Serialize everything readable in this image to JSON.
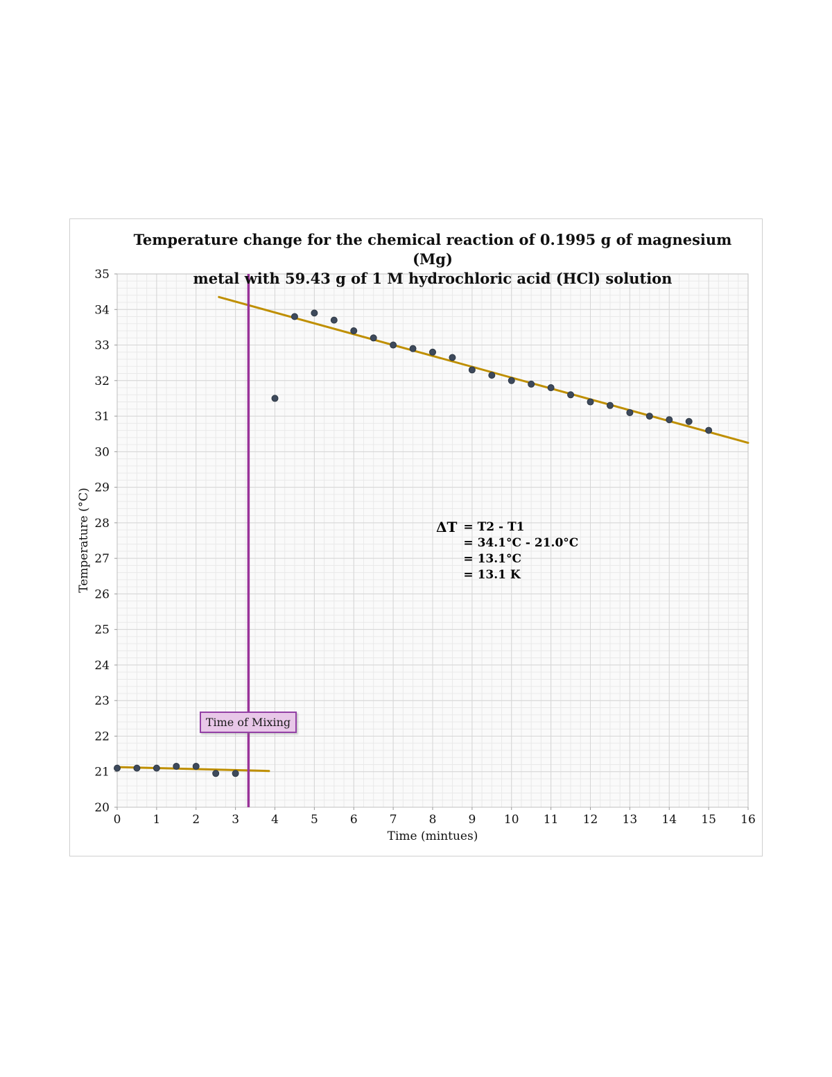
{
  "chart_data": {
    "type": "scatter",
    "title_line1": "Temperature change for the chemical reaction of 0.1995 g of magnesium (Mg)",
    "title_line2": "metal with 59.43 g of 1 M hydrochloric acid (HCl) solution",
    "xlabel": "Time (mintues)",
    "ylabel": "Temperature (°C)",
    "xlim": [
      0,
      16
    ],
    "ylim": [
      20,
      35
    ],
    "x_ticks": [
      0,
      1,
      2,
      3,
      4,
      5,
      6,
      7,
      8,
      9,
      10,
      11,
      12,
      13,
      14,
      15,
      16
    ],
    "y_ticks": [
      20,
      21,
      22,
      23,
      24,
      25,
      26,
      27,
      28,
      29,
      30,
      31,
      32,
      33,
      34,
      35
    ],
    "minor_step_x": 0.25,
    "minor_step_y": 0.2,
    "grid": true,
    "legend": "none",
    "colors": {
      "point": "#3e4a5c",
      "point_edge": "#2e3844",
      "trendline": "#bf8f00",
      "mixing_line": "#993399",
      "plot_bg": "#fafafa",
      "minor_grid": "#e9e9e9",
      "major_grid": "#d5d5d5",
      "plot_border": "#bfbfbf"
    },
    "points": [
      [
        0,
        21.1
      ],
      [
        0.5,
        21.1
      ],
      [
        1,
        21.1
      ],
      [
        1.5,
        21.15
      ],
      [
        2,
        21.15
      ],
      [
        2.5,
        20.95
      ],
      [
        3,
        20.95
      ],
      [
        4,
        31.5
      ],
      [
        4.5,
        33.8
      ],
      [
        5,
        33.9
      ],
      [
        5.5,
        33.7
      ],
      [
        6,
        33.4
      ],
      [
        6.5,
        33.2
      ],
      [
        7,
        33.0
      ],
      [
        7.5,
        32.9
      ],
      [
        8,
        32.8
      ],
      [
        8.5,
        32.65
      ],
      [
        9,
        32.3
      ],
      [
        9.5,
        32.15
      ],
      [
        10,
        32.0
      ],
      [
        10.5,
        31.9
      ],
      [
        11,
        31.8
      ],
      [
        11.5,
        31.6
      ],
      [
        12,
        31.4
      ],
      [
        12.5,
        31.3
      ],
      [
        13,
        31.1
      ],
      [
        13.5,
        31.0
      ],
      [
        14,
        30.9
      ],
      [
        14.5,
        30.85
      ],
      [
        15,
        30.6
      ]
    ],
    "trendlines": [
      {
        "x1": 2.58,
        "y1": 34.35,
        "x2": 16,
        "y2": 30.25
      },
      {
        "x1": 0,
        "y1": 21.13,
        "x2": 3.85,
        "y2": 21.02
      }
    ],
    "mixing_line_x": 3.33,
    "mixing_label": "Time of Mixing",
    "annotation": {
      "symbol": "ΔT",
      "lines": [
        "= T2 - T1",
        "= 34.1°C - 21.0°C",
        "= 13.1°C",
        "= 13.1 K"
      ]
    }
  }
}
